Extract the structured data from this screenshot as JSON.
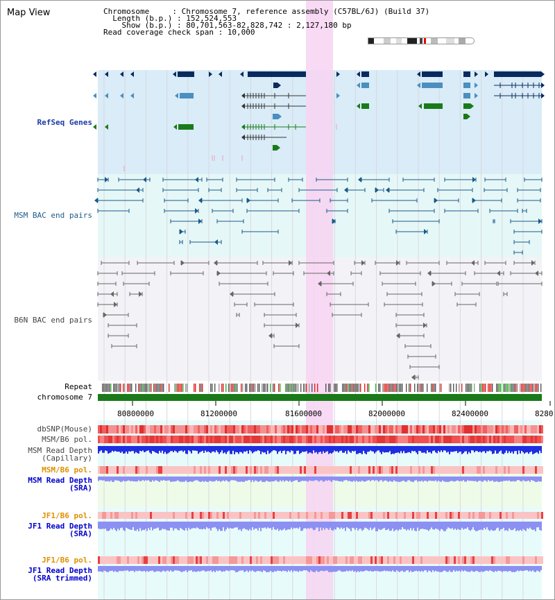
{
  "title": "Map View",
  "info": {
    "chromosome_key": "Chromosome     : ",
    "chromosome_val": "Chromosome 7, reference assembly (C57BL/6J) (Build 37)",
    "length_key": "  Length (b.p.) : ",
    "length_val": "152,524,553",
    "show_key": "    Show (b.p.) : ",
    "show_val": "80,701,563-82,828,742 : 2,127,180 bp",
    "coverage_key": "Read coverage check span : ",
    "coverage_val": "10,000"
  },
  "tracks": {
    "refseq": "RefSeq Genes",
    "msm_bac": "MSM BAC end pairs",
    "b6n_bac": "B6N BAC end pairs",
    "repeat": "Repeat",
    "chromosome": "chromosome 7",
    "dbsnp": "dbSNP(Mouse)",
    "msm_b6_pol": "MSM/B6 pol.",
    "msm_depth_cap_1": "MSM Read Depth",
    "msm_depth_cap_2": "(Capillary)",
    "msm_b6_pol_sra": "MSM/B6 pol.",
    "msm_depth_sra_1": "MSM Read Depth",
    "msm_depth_sra_2": "(SRA)",
    "jf1_b6_pol_1": "JF1/B6 pol.",
    "jf1_depth_1": "JF1 Read Depth",
    "jf1_depth_2": "(SRA)",
    "jf1_b6_pol_2": "JF1/B6 pol.",
    "jf1_depth_trim_1": "JF1 Read Depth",
    "jf1_depth_trim_2": "(SRA trimmed)"
  },
  "axis": {
    "ticks": [
      "80800000",
      "81200000",
      "81600000",
      "82000000",
      "82400000",
      "8280"
    ]
  },
  "colors": {
    "gene_dark": "#0a2a5e",
    "gene_mid": "#4a8fbf",
    "gene_green": "#1a7a1a",
    "refseq_bg": "#d9ecf7",
    "msm_bg": "#e6f7f7",
    "b6n_bg": "#f3f3f7",
    "highlight": "#f7d4f2",
    "msm_label": "#1a5a8a",
    "depth_blue": "#1f2ee0",
    "depth_light": "#8c90f2",
    "orange_label": "#e09000",
    "blue_label": "#0000cc"
  }
}
